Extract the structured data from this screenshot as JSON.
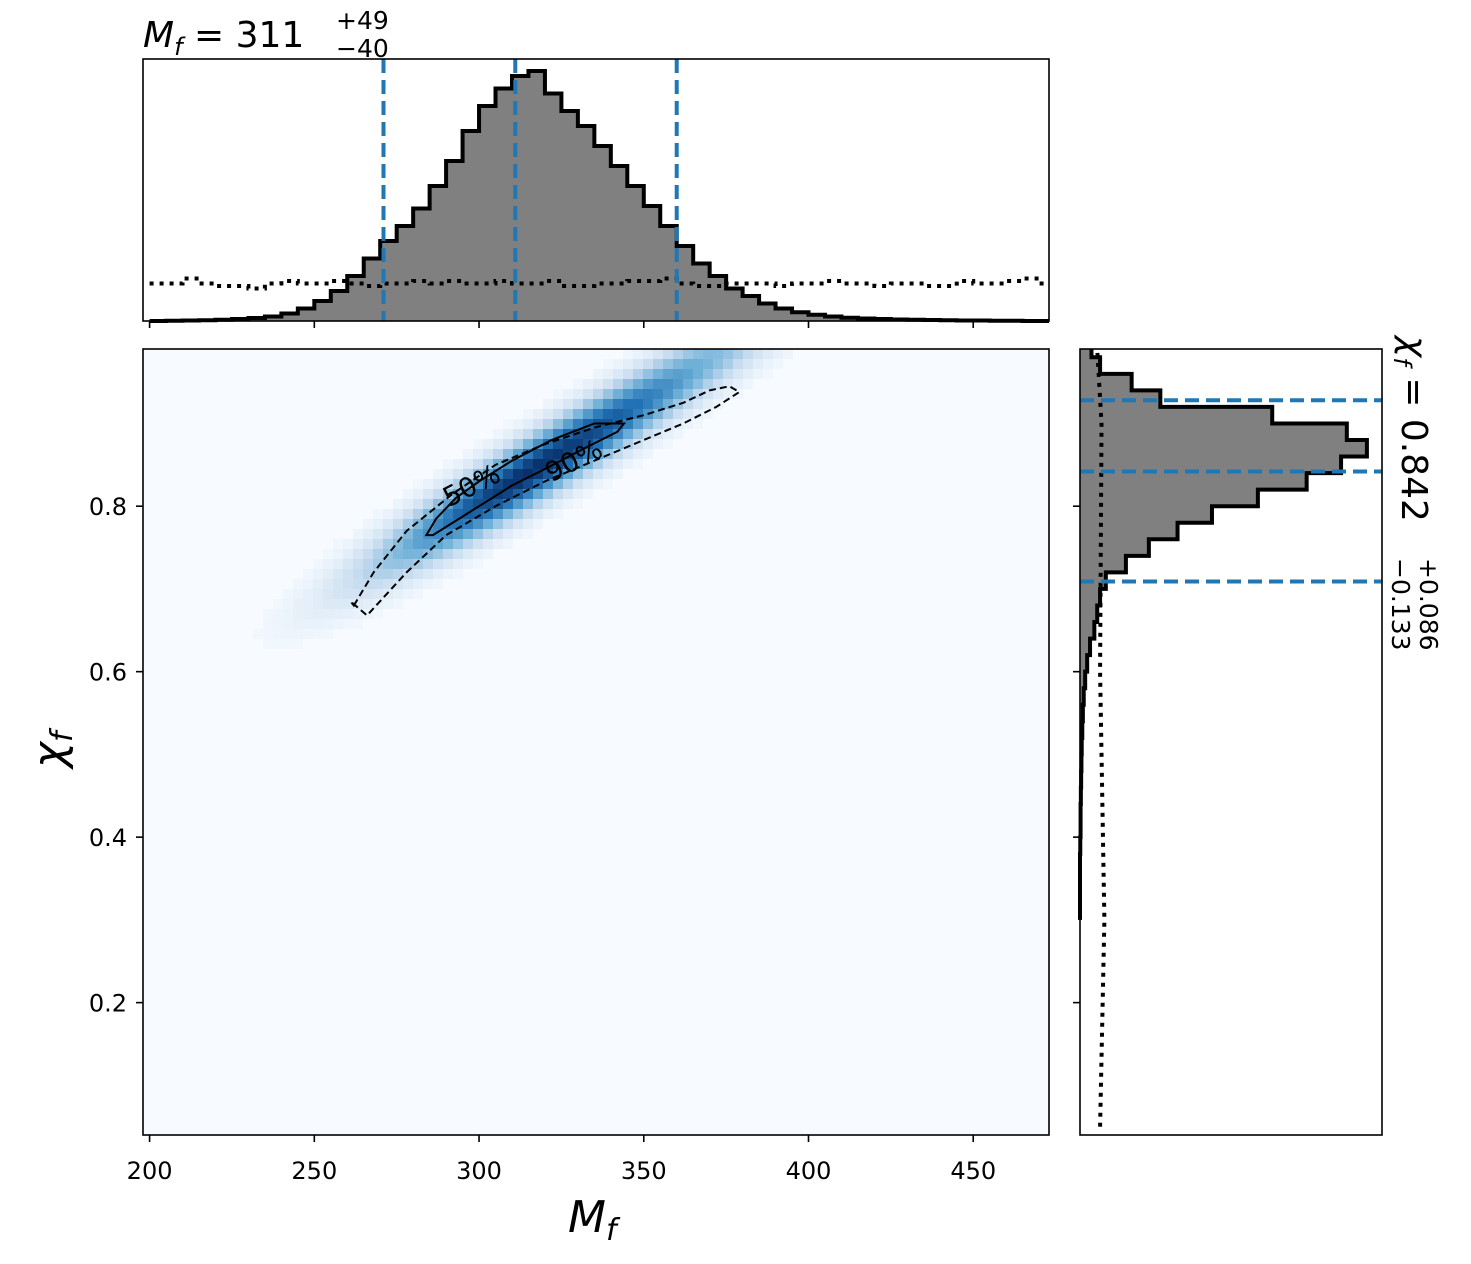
{
  "chart_data": [
    {
      "type": "area",
      "panel": "top-marginal",
      "title": {
        "symbol": "M",
        "sub": "f",
        "eq": " = ",
        "value": "311",
        "plus": "+49",
        "minus": "−40"
      },
      "x": [
        200,
        205,
        210,
        215,
        220,
        225,
        230,
        235,
        240,
        245,
        250,
        255,
        260,
        265,
        270,
        275,
        280,
        285,
        290,
        295,
        300,
        305,
        310,
        315,
        320,
        325,
        330,
        335,
        340,
        345,
        350,
        355,
        360,
        365,
        370,
        375,
        380,
        385,
        390,
        395,
        400,
        405,
        410,
        415,
        420,
        425,
        430,
        435,
        440,
        445,
        450,
        455,
        460,
        465,
        470
      ],
      "values": [
        0.0,
        0.001,
        0.002,
        0.003,
        0.005,
        0.008,
        0.012,
        0.018,
        0.03,
        0.05,
        0.08,
        0.12,
        0.18,
        0.25,
        0.32,
        0.38,
        0.45,
        0.54,
        0.64,
        0.76,
        0.86,
        0.93,
        0.98,
        1.0,
        0.91,
        0.84,
        0.78,
        0.7,
        0.62,
        0.54,
        0.46,
        0.38,
        0.3,
        0.23,
        0.18,
        0.13,
        0.1,
        0.07,
        0.05,
        0.035,
        0.025,
        0.018,
        0.013,
        0.01,
        0.008,
        0.006,
        0.005,
        0.004,
        0.003,
        0.002,
        0.002,
        0.001,
        0.001,
        0.0,
        0.0
      ],
      "prior_values": [
        0.15,
        0.15,
        0.17,
        0.15,
        0.14,
        0.14,
        0.13,
        0.15,
        0.16,
        0.15,
        0.15,
        0.16,
        0.15,
        0.14,
        0.15,
        0.15,
        0.16,
        0.15,
        0.16,
        0.15,
        0.15,
        0.16,
        0.15,
        0.15,
        0.16,
        0.14,
        0.14,
        0.15,
        0.15,
        0.16,
        0.16,
        0.17,
        0.15,
        0.14,
        0.14,
        0.15,
        0.15,
        0.15,
        0.14,
        0.15,
        0.15,
        0.16,
        0.15,
        0.15,
        0.14,
        0.15,
        0.15,
        0.14,
        0.14,
        0.16,
        0.15,
        0.15,
        0.16,
        0.17,
        0.15
      ],
      "quantile_lines": [
        271,
        311,
        360
      ],
      "xlim": [
        198,
        473
      ]
    },
    {
      "type": "heatmap",
      "panel": "joint",
      "xlabel": {
        "symbol": "M",
        "sub": "f"
      },
      "ylabel": {
        "symbol": "χ",
        "sub": "f"
      },
      "xlim": [
        198,
        473
      ],
      "ylim": [
        0.04,
        0.99
      ],
      "xticks": [
        200,
        250,
        300,
        350,
        400,
        450
      ],
      "yticks": [
        0.2,
        0.4,
        0.6,
        0.8
      ],
      "xtick_labels": [
        "200",
        "250",
        "300",
        "350",
        "400",
        "450"
      ],
      "ytick_labels": [
        "0.2",
        "0.4",
        "0.6",
        "0.8"
      ],
      "density_peak": {
        "x": 315,
        "y": 0.84
      },
      "contours": [
        {
          "level": "50%",
          "style": "solid",
          "x": [
            284,
            287,
            293,
            300,
            310,
            322,
            335,
            344,
            342,
            332,
            320,
            310,
            300,
            292,
            286,
            284
          ],
          "y": [
            0.765,
            0.785,
            0.81,
            0.83,
            0.855,
            0.88,
            0.9,
            0.9,
            0.89,
            0.87,
            0.845,
            0.825,
            0.8,
            0.78,
            0.765,
            0.765
          ]
        },
        {
          "level": "90%",
          "style": "dashed",
          "x": [
            262,
            268,
            278,
            292,
            305,
            320,
            335,
            350,
            362,
            370,
            376,
            379,
            372,
            362,
            350,
            335,
            320,
            305,
            290,
            278,
            266,
            261,
            262
          ],
          "y": [
            0.68,
            0.72,
            0.77,
            0.815,
            0.85,
            0.875,
            0.895,
            0.91,
            0.925,
            0.94,
            0.945,
            0.938,
            0.92,
            0.9,
            0.88,
            0.855,
            0.83,
            0.8,
            0.765,
            0.72,
            0.668,
            0.685,
            0.68
          ]
        }
      ]
    },
    {
      "type": "area",
      "panel": "right-marginal",
      "title": {
        "symbol": "χ",
        "sub": "f",
        "eq": " = ",
        "value": "0.842",
        "plus": "+0.086",
        "minus": "−0.133"
      },
      "y": [
        0.3,
        0.32,
        0.34,
        0.36,
        0.38,
        0.4,
        0.42,
        0.44,
        0.46,
        0.48,
        0.5,
        0.52,
        0.54,
        0.56,
        0.58,
        0.6,
        0.62,
        0.64,
        0.66,
        0.68,
        0.7,
        0.72,
        0.74,
        0.76,
        0.78,
        0.8,
        0.82,
        0.84,
        0.86,
        0.88,
        0.9,
        0.92,
        0.94,
        0.96,
        0.98
      ],
      "values": [
        0.0,
        0.0,
        0.0,
        0.0,
        0.001,
        0.002,
        0.002,
        0.003,
        0.004,
        0.005,
        0.006,
        0.008,
        0.01,
        0.013,
        0.018,
        0.025,
        0.035,
        0.05,
        0.06,
        0.07,
        0.09,
        0.16,
        0.24,
        0.34,
        0.46,
        0.62,
        0.79,
        0.91,
        1.0,
        0.93,
        0.67,
        0.28,
        0.18,
        0.07,
        0.04
      ],
      "prior_values": [
        0.07,
        0.07,
        0.07,
        0.07,
        0.07,
        0.07,
        0.07,
        0.07,
        0.07,
        0.07,
        0.07,
        0.07,
        0.07,
        0.07,
        0.07,
        0.07,
        0.07,
        0.07,
        0.07,
        0.07,
        0.07,
        0.07,
        0.07,
        0.07,
        0.07,
        0.07,
        0.07,
        0.07,
        0.07,
        0.07,
        0.07,
        0.07,
        0.07,
        0.07,
        0.07
      ],
      "quantile_lines": [
        0.709,
        0.842,
        0.928
      ],
      "ylim": [
        0.04,
        0.99
      ]
    }
  ],
  "colors": {
    "hist_fill": "#808080",
    "hist_edge": "#000000",
    "quantile": "#1f77b4",
    "density_low": "#f7fbff",
    "density_high": "#08306b"
  }
}
